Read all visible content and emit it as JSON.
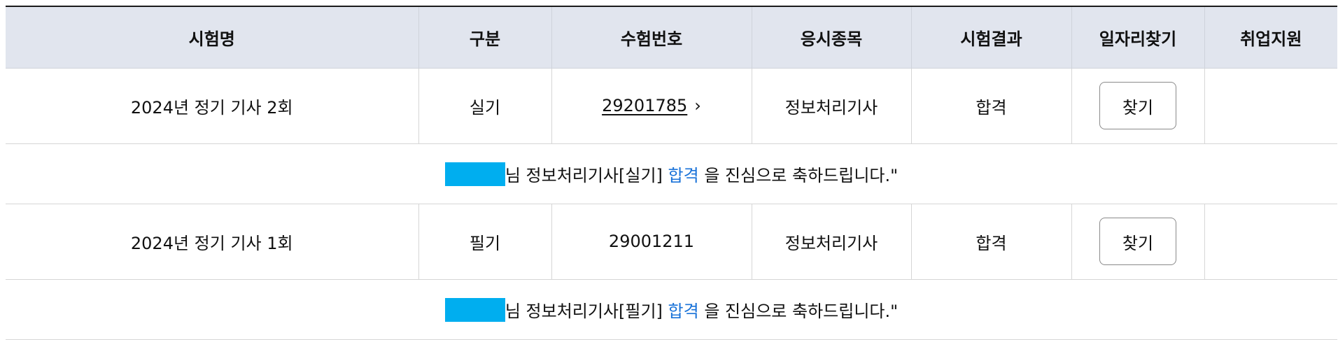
{
  "table": {
    "headers": [
      "시험명",
      "구분",
      "수험번호",
      "응시종목",
      "시험결과",
      "일자리찾기",
      "취업지원"
    ],
    "rows": [
      {
        "exam_name": "2024년 정기 기사 2회",
        "type": "실기",
        "exam_number": "29201785",
        "exam_number_is_link": true,
        "chevron": "›",
        "subject": "정보처리기사",
        "result": "합격",
        "find_label": "찾기",
        "support": "",
        "message": {
          "mask_color": "#00aeef",
          "name_suffix": "님 정보처리기사[실기] ",
          "highlight": "합격",
          "tail": " 을 진심으로 축하드립니다.\""
        }
      },
      {
        "exam_name": "2024년 정기 기사 1회",
        "type": "필기",
        "exam_number": "29001211",
        "exam_number_is_link": false,
        "subject": "정보처리기사",
        "result": "합격",
        "find_label": "찾기",
        "support": "",
        "message": {
          "mask_color": "#00aeef",
          "name_suffix": "님 정보처리기사[필기] ",
          "highlight": "합격",
          "tail": " 을 진심으로 축하드립니다.\""
        }
      }
    ]
  },
  "colors": {
    "header_bg": "#e1e5ee",
    "pass_highlight": "#1a73d9",
    "mask": "#00aeef"
  },
  "icons": {
    "exam_number_link": "chevron-right-icon"
  }
}
